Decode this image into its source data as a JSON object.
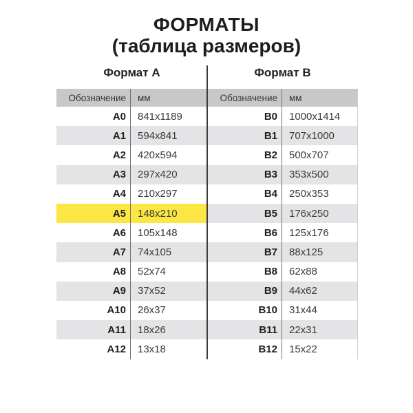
{
  "page": {
    "title": "ФОРМАТЫ",
    "subtitle": "(таблица размеров)"
  },
  "colors": {
    "header_band": "#c8c8c8",
    "stripe": "#e4e4e6",
    "highlight": "#fbe643",
    "divider_line": "#3c3c3c"
  },
  "highlight": {
    "row": "A5"
  },
  "format_a": {
    "heading": "Формат А",
    "columns": {
      "designation": "Обозначение",
      "mm": "мм"
    },
    "rows": [
      {
        "label": "A0",
        "size": "841x1189"
      },
      {
        "label": "A1",
        "size": "594x841"
      },
      {
        "label": "A2",
        "size": "420x594"
      },
      {
        "label": "A3",
        "size": "297x420"
      },
      {
        "label": "A4",
        "size": "210x297"
      },
      {
        "label": "A5",
        "size": "148x210"
      },
      {
        "label": "A6",
        "size": "105x148"
      },
      {
        "label": "A7",
        "size": "74x105"
      },
      {
        "label": "A8",
        "size": "52x74"
      },
      {
        "label": "A9",
        "size": "37x52"
      },
      {
        "label": "A10",
        "size": "26x37"
      },
      {
        "label": "A11",
        "size": "18x26"
      },
      {
        "label": "A12",
        "size": "13x18"
      }
    ]
  },
  "format_b": {
    "heading": "Формат В",
    "columns": {
      "designation": "Обозначение",
      "mm": "мм"
    },
    "rows": [
      {
        "label": "B0",
        "size": "1000x1414"
      },
      {
        "label": "B1",
        "size": "707x1000"
      },
      {
        "label": "B2",
        "size": "500x707"
      },
      {
        "label": "B3",
        "size": "353x500"
      },
      {
        "label": "B4",
        "size": "250x353"
      },
      {
        "label": "B5",
        "size": "176x250"
      },
      {
        "label": "B6",
        "size": "125x176"
      },
      {
        "label": "B7",
        "size": "88x125"
      },
      {
        "label": "B8",
        "size": "62x88"
      },
      {
        "label": "B9",
        "size": "44x62"
      },
      {
        "label": "B10",
        "size": "31x44"
      },
      {
        "label": "B11",
        "size": "22x31"
      },
      {
        "label": "B12",
        "size": "15x22"
      }
    ]
  },
  "chart_data": {
    "type": "table",
    "title": "ФОРМАТЫ (таблица размеров)",
    "columns": [
      "Обозначение",
      "мм",
      "Обозначение",
      "мм"
    ],
    "groups": [
      "Формат А",
      "Формат В"
    ],
    "rows": [
      [
        "A0",
        "841x1189",
        "B0",
        "1000x1414"
      ],
      [
        "A1",
        "594x841",
        "B1",
        "707x1000"
      ],
      [
        "A2",
        "420x594",
        "B2",
        "500x707"
      ],
      [
        "A3",
        "297x420",
        "B3",
        "353x500"
      ],
      [
        "A4",
        "210x297",
        "B4",
        "250x353"
      ],
      [
        "A5",
        "148x210",
        "B5",
        "176x250"
      ],
      [
        "A6",
        "105x148",
        "B6",
        "125x176"
      ],
      [
        "A7",
        "74x105",
        "B7",
        "88x125"
      ],
      [
        "A8",
        "52x74",
        "B8",
        "62x88"
      ],
      [
        "A9",
        "37x52",
        "B9",
        "44x62"
      ],
      [
        "A10",
        "26x37",
        "B10",
        "31x44"
      ],
      [
        "A11",
        "18x26",
        "B11",
        "22x31"
      ],
      [
        "A12",
        "13x18",
        "B12",
        "15x22"
      ]
    ],
    "highlighted_row": "A5",
    "legend_position": "none",
    "grid": "striped"
  }
}
